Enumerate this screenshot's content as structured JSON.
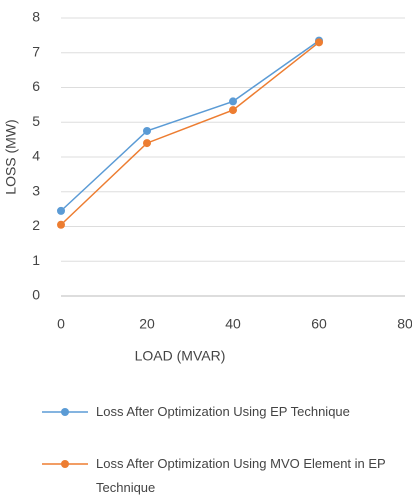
{
  "chart_data": {
    "type": "line",
    "x_label": "LOAD (MVAR)",
    "y_label": "LOSS (MW)",
    "x": [
      0,
      20,
      40,
      60
    ],
    "series": [
      {
        "name": "Loss After Optimization Using EP Technique",
        "color": "#5b9bd5",
        "values": [
          2.45,
          4.75,
          5.6,
          7.35
        ]
      },
      {
        "name": "Loss After Optimization Using MVO Element in EP Technique",
        "color": "#ed7d31",
        "values": [
          2.05,
          4.4,
          5.35,
          7.3
        ]
      }
    ],
    "xlim": [
      0,
      80
    ],
    "xticks": [
      0,
      20,
      40,
      60,
      80
    ],
    "ylim": [
      0,
      8
    ],
    "yticks": [
      0,
      1,
      2,
      3,
      4,
      5,
      6,
      7,
      8
    ],
    "grid": true
  }
}
